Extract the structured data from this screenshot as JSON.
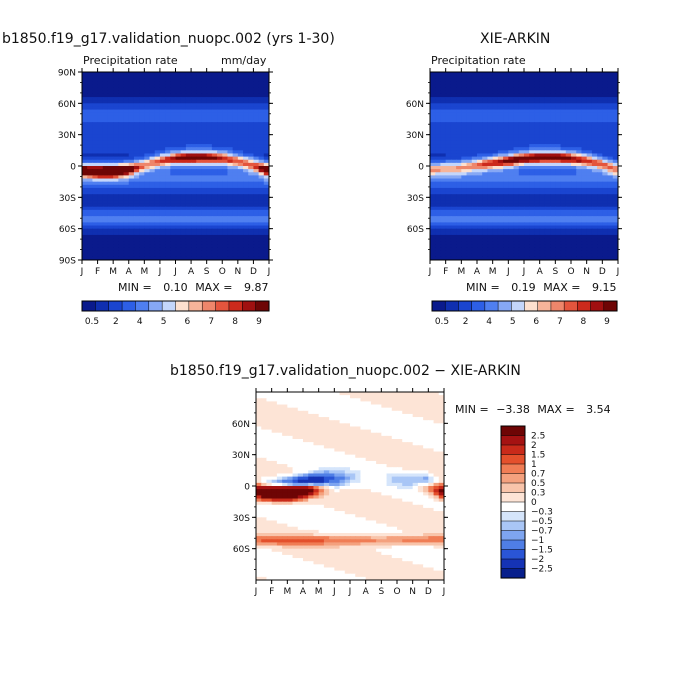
{
  "panel1": {
    "title": "b1850.f19_g17.validation_nuopc.002 (yrs 1-30)",
    "subtitle_left": "Precipitation rate",
    "subtitle_right": "mm/day",
    "min_label": "MIN =",
    "min_value": "0.10",
    "max_label": "MAX =",
    "max_value": "9.87",
    "y_ticks": [
      "90N",
      "60N",
      "30N",
      "0",
      "30S",
      "60S",
      "90S"
    ],
    "x_ticks": [
      "J",
      "F",
      "M",
      "A",
      "M",
      "J",
      "J",
      "A",
      "S",
      "O",
      "N",
      "D",
      "J"
    ],
    "colorbar_labels": [
      "0.5",
      "2",
      "4",
      "5",
      "6",
      "7",
      "8",
      "9"
    ]
  },
  "panel2": {
    "title": "XIE-ARKIN",
    "subtitle_left": "Precipitation rate",
    "min_label": "MIN =",
    "min_value": "0.19",
    "max_label": "MAX =",
    "max_value": "9.15",
    "y_ticks": [
      "60N",
      "30N",
      "0",
      "30S",
      "60S"
    ],
    "x_ticks": [
      "J",
      "F",
      "M",
      "A",
      "M",
      "J",
      "J",
      "A",
      "S",
      "O",
      "N",
      "D",
      "J"
    ],
    "colorbar_labels": [
      "0.5",
      "2",
      "4",
      "5",
      "6",
      "7",
      "8",
      "9"
    ]
  },
  "panel3": {
    "title": "b1850.f19_g17.validation_nuopc.002 − XIE-ARKIN",
    "min_label": "MIN =",
    "min_value": "−3.38",
    "max_label": "MAX =",
    "max_value": "3.54",
    "y_ticks": [
      "60N",
      "30N",
      "0",
      "30S",
      "60S"
    ],
    "x_ticks": [
      "J",
      "F",
      "M",
      "A",
      "M",
      "J",
      "J",
      "A",
      "S",
      "O",
      "N",
      "D",
      "J"
    ],
    "colorbar_labels": [
      "2.5",
      "2",
      "1.5",
      "1",
      "0.7",
      "0.5",
      "0.3",
      "0",
      "−0.3",
      "−0.5",
      "−0.7",
      "−1",
      "−1.5",
      "−2",
      "−2.5"
    ]
  },
  "colors": {
    "precip_scale": [
      "#0a1a8c",
      "#0f2fb0",
      "#1a45d0",
      "#2d5fe6",
      "#4f7ff0",
      "#86a8f5",
      "#c4d6fb",
      "#fde0cf",
      "#f6b49a",
      "#ee866b",
      "#e4553d",
      "#cc2a1c",
      "#a01010",
      "#6e0505"
    ],
    "diff_scale": [
      "#6e0505",
      "#a51212",
      "#c92a1a",
      "#e4502c",
      "#f07d55",
      "#f4a17e",
      "#f8c4aa",
      "#fde4d6",
      "#ffffff",
      "#d5e5fb",
      "#a9c6f6",
      "#7ea5f0",
      "#4f7ee6",
      "#2a55d6",
      "#1533b5",
      "#071f8c"
    ]
  },
  "chart_data": [
    {
      "type": "heatmap",
      "title": "b1850.f19_g17.validation_nuopc.002 (yrs 1-30)",
      "subtitle": "Precipitation rate",
      "units": "mm/day",
      "x": [
        "J",
        "F",
        "M",
        "A",
        "M",
        "J",
        "J",
        "A",
        "S",
        "O",
        "N",
        "D",
        "J"
      ],
      "y_range": [
        -90,
        90
      ],
      "min": 0.1,
      "max": 9.87,
      "levels": [
        0.5,
        1,
        2,
        3,
        4,
        5,
        6,
        6.5,
        7,
        7.5,
        8,
        8.5,
        9
      ],
      "itcz_peak_lat_by_month": [
        -4,
        -5,
        -5,
        -3,
        1,
        5,
        7,
        8,
        8,
        7,
        5,
        1,
        -4
      ],
      "itcz_peak_value_by_month": [
        8.5,
        9.0,
        9.87,
        8.0,
        6.0,
        7.0,
        8.5,
        9.2,
        9.0,
        8.0,
        7.0,
        6.5,
        8.5
      ]
    },
    {
      "type": "heatmap",
      "title": "XIE-ARKIN",
      "subtitle": "Precipitation rate",
      "x": [
        "J",
        "F",
        "M",
        "A",
        "M",
        "J",
        "J",
        "A",
        "S",
        "O",
        "N",
        "D",
        "J"
      ],
      "y_range": [
        -90,
        90
      ],
      "min": 0.19,
      "max": 9.15,
      "levels": [
        0.5,
        1,
        2,
        3,
        4,
        5,
        6,
        6.5,
        7,
        7.5,
        8,
        8.5,
        9
      ],
      "itcz_peak_lat_by_month": [
        -3,
        -2,
        -1,
        1,
        3,
        5,
        7,
        8,
        8,
        7,
        5,
        2,
        -3
      ],
      "itcz_peak_value_by_month": [
        5.5,
        5.0,
        5.5,
        6.5,
        7.5,
        8.5,
        9.0,
        9.15,
        9.0,
        8.5,
        7.5,
        6.5,
        5.5
      ]
    },
    {
      "type": "heatmap",
      "title": "b1850.f19_g17.validation_nuopc.002 − XIE-ARKIN",
      "x": [
        "J",
        "F",
        "M",
        "A",
        "M",
        "J",
        "J",
        "A",
        "S",
        "O",
        "N",
        "D",
        "J"
      ],
      "y_range": [
        -90,
        90
      ],
      "min": -3.38,
      "max": 3.54,
      "levels": [
        -2.5,
        -2,
        -1.5,
        -1,
        -0.7,
        -0.5,
        -0.3,
        0,
        0.3,
        0.5,
        0.7,
        1,
        1.5,
        2,
        2.5
      ]
    }
  ]
}
